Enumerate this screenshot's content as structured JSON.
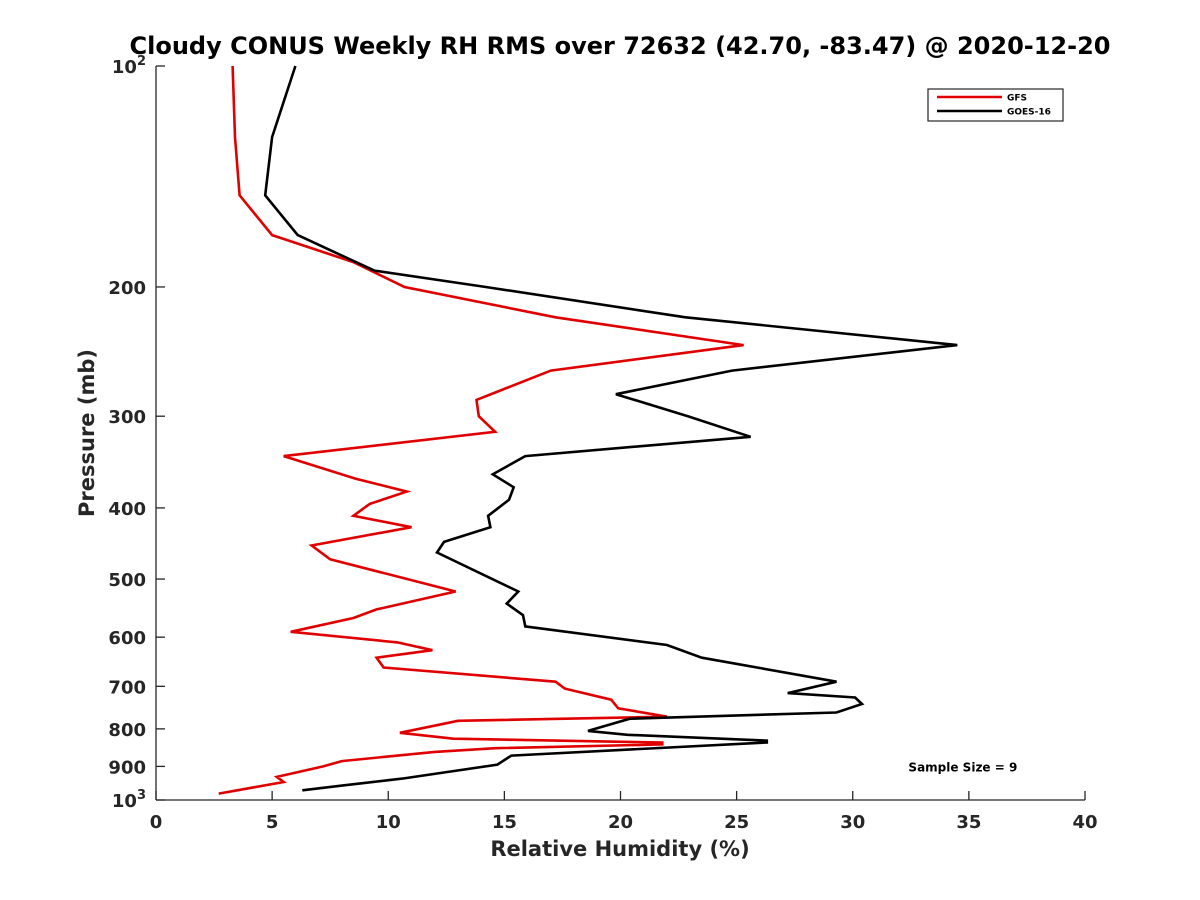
{
  "chart_data": {
    "type": "line",
    "title": "Cloudy CONUS Weekly RH RMS over 72632 (42.70, -83.47) @ 2020-12-20",
    "xlabel": "Relative Humidity (%)",
    "ylabel": "Pressure (mb)",
    "xlim": [
      0,
      40
    ],
    "ylim": [
      100,
      1000
    ],
    "y_scale": "log",
    "y_reversed": true,
    "grid": false,
    "legend_position": "top-right",
    "x_ticks": [
      "0",
      "5",
      "10",
      "15",
      "20",
      "25",
      "30",
      "35",
      "40"
    ],
    "y_ticks": [
      {
        "value": 100,
        "base": "10",
        "exp": "2"
      },
      {
        "value": 200,
        "label": "200"
      },
      {
        "value": 300,
        "label": "300"
      },
      {
        "value": 400,
        "label": "400"
      },
      {
        "value": 500,
        "label": "500"
      },
      {
        "value": 600,
        "label": "600"
      },
      {
        "value": 700,
        "label": "700"
      },
      {
        "value": 800,
        "label": "800"
      },
      {
        "value": 900,
        "label": "900"
      },
      {
        "value": 1000,
        "base": "10",
        "exp": "3"
      }
    ],
    "series": [
      {
        "name": "GFS",
        "color": "#e00000",
        "points": [
          [
            3.3,
            100
          ],
          [
            3.4,
            125
          ],
          [
            3.6,
            150
          ],
          [
            5.0,
            170
          ],
          [
            8.5,
            185
          ],
          [
            10.7,
            200
          ],
          [
            17.2,
            220
          ],
          [
            25.3,
            240
          ],
          [
            17.0,
            260
          ],
          [
            13.8,
            285
          ],
          [
            13.9,
            300
          ],
          [
            14.6,
            315
          ],
          [
            5.5,
            340
          ],
          [
            8.6,
            365
          ],
          [
            10.8,
            380
          ],
          [
            9.2,
            395
          ],
          [
            8.5,
            410
          ],
          [
            11.0,
            425
          ],
          [
            6.7,
            450
          ],
          [
            7.5,
            470
          ],
          [
            12.9,
            520
          ],
          [
            9.5,
            550
          ],
          [
            8.5,
            565
          ],
          [
            5.8,
            590
          ],
          [
            10.4,
            610
          ],
          [
            11.9,
            625
          ],
          [
            9.5,
            640
          ],
          [
            9.8,
            660
          ],
          [
            17.2,
            690
          ],
          [
            17.6,
            705
          ],
          [
            19.6,
            730
          ],
          [
            19.9,
            750
          ],
          [
            22.0,
            770
          ],
          [
            13.0,
            780
          ],
          [
            10.5,
            810
          ],
          [
            12.8,
            825
          ],
          [
            21.8,
            835
          ],
          [
            21.8,
            840
          ],
          [
            14.6,
            850
          ],
          [
            12.0,
            860
          ],
          [
            8.0,
            885
          ],
          [
            7.2,
            900
          ],
          [
            5.2,
            930
          ],
          [
            5.5,
            945
          ],
          [
            2.7,
            980
          ]
        ]
      },
      {
        "name": "GOES-16",
        "color": "#000000",
        "points": [
          [
            6.0,
            100
          ],
          [
            5.0,
            125
          ],
          [
            4.7,
            150
          ],
          [
            6.1,
            170
          ],
          [
            9.4,
            190
          ],
          [
            14.2,
            200
          ],
          [
            22.8,
            220
          ],
          [
            34.5,
            240
          ],
          [
            24.8,
            260
          ],
          [
            19.8,
            280
          ],
          [
            22.9,
            300
          ],
          [
            25.6,
            320
          ],
          [
            15.9,
            340
          ],
          [
            14.5,
            360
          ],
          [
            15.4,
            375
          ],
          [
            15.2,
            390
          ],
          [
            14.3,
            410
          ],
          [
            14.4,
            425
          ],
          [
            12.4,
            445
          ],
          [
            12.1,
            460
          ],
          [
            15.6,
            520
          ],
          [
            15.1,
            540
          ],
          [
            15.8,
            560
          ],
          [
            15.9,
            580
          ],
          [
            22.0,
            615
          ],
          [
            23.5,
            640
          ],
          [
            29.3,
            690
          ],
          [
            27.2,
            715
          ],
          [
            30.1,
            725
          ],
          [
            30.4,
            740
          ],
          [
            29.3,
            760
          ],
          [
            20.4,
            775
          ],
          [
            18.6,
            805
          ],
          [
            20.3,
            815
          ],
          [
            26.3,
            830
          ],
          [
            26.3,
            835
          ],
          [
            15.3,
            870
          ],
          [
            14.7,
            895
          ],
          [
            10.6,
            935
          ],
          [
            8.1,
            955
          ],
          [
            6.3,
            970
          ]
        ]
      }
    ],
    "annotations": [
      {
        "text": "Sample Size = 9",
        "x": 35,
        "y": 900
      }
    ]
  }
}
